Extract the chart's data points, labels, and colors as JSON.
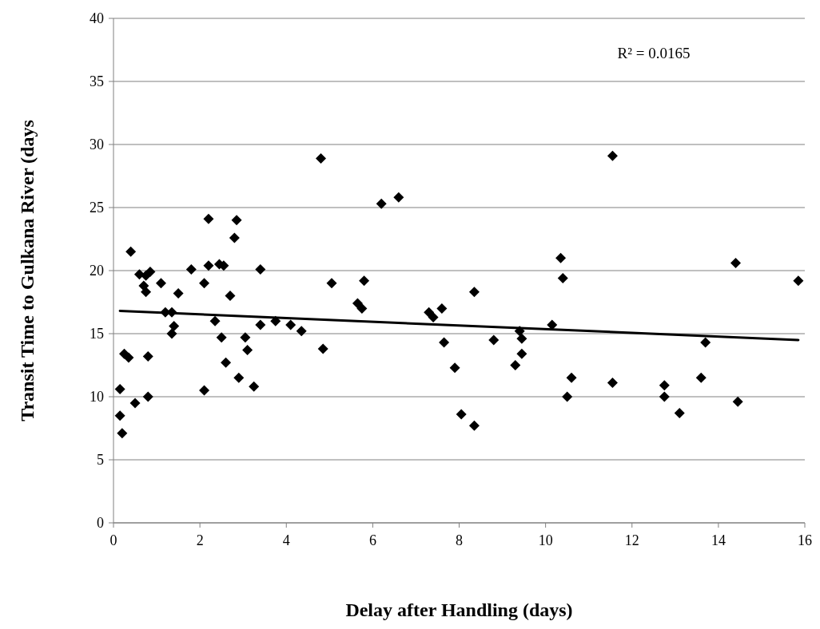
{
  "chart_data": {
    "type": "scatter",
    "xlabel": "Delay after Handling (days)",
    "ylabel": "Transit Time to Gulkana River (days",
    "annotations": [
      "R² = 0.0165"
    ],
    "xlim": [
      0,
      16
    ],
    "xticks": [
      0,
      2,
      4,
      6,
      8,
      10,
      12,
      14,
      16
    ],
    "ylim": [
      0,
      40
    ],
    "yticks": [
      0,
      5,
      10,
      15,
      20,
      25,
      30,
      35,
      40
    ],
    "grid": "y",
    "series": [
      {
        "color": "#000000",
        "marker": "diamond",
        "x": [
          0.15,
          0.15,
          0.2,
          0.25,
          0.35,
          0.4,
          0.5,
          0.6,
          0.7,
          0.75,
          0.75,
          0.85,
          0.8,
          0.8,
          1.1,
          1.2,
          1.35,
          1.4,
          1.35,
          1.5,
          1.8,
          2.1,
          2.1,
          2.2,
          2.2,
          2.35,
          2.45,
          2.55,
          2.5,
          2.6,
          2.7,
          2.8,
          2.85,
          2.9,
          3.05,
          3.1,
          3.25,
          3.4,
          3.4,
          3.75,
          4.1,
          4.35,
          4.8,
          4.85,
          5.05,
          5.65,
          5.75,
          5.8,
          6.2,
          6.6,
          7.3,
          7.4,
          7.6,
          7.65,
          7.9,
          8.05,
          8.35,
          8.35,
          8.8,
          9.3,
          9.4,
          9.45,
          9.45,
          10.15,
          10.35,
          10.4,
          10.5,
          10.6,
          11.55,
          11.55,
          12.75,
          12.75,
          13.1,
          13.6,
          13.7,
          14.4,
          14.45,
          15.85
        ],
        "values": [
          8.5,
          10.6,
          7.1,
          13.4,
          13.1,
          21.5,
          9.5,
          19.7,
          18.8,
          18.3,
          19.6,
          19.9,
          13.2,
          10.0,
          19.0,
          16.7,
          16.7,
          15.6,
          15.0,
          18.2,
          20.1,
          10.5,
          19.0,
          24.1,
          20.4,
          16.0,
          20.5,
          20.4,
          14.7,
          12.7,
          18.0,
          22.6,
          24.0,
          11.5,
          14.7,
          13.7,
          10.8,
          20.1,
          15.7,
          16.0,
          15.7,
          15.2,
          28.9,
          13.8,
          19.0,
          17.4,
          17.0,
          19.2,
          25.3,
          25.8,
          16.7,
          16.3,
          17.0,
          14.3,
          12.3,
          8.6,
          7.7,
          18.3,
          14.5,
          12.5,
          15.2,
          14.6,
          13.4,
          15.7,
          21.0,
          19.4,
          10.0,
          11.5,
          29.1,
          11.1,
          10.9,
          10.0,
          8.7,
          11.5,
          14.3,
          20.6,
          9.6,
          19.2
        ]
      },
      {
        "type": "line",
        "color": "#000000",
        "marker": "none",
        "line_style": "solid",
        "x": [
          0.15,
          15.85
        ],
        "values": [
          16.8,
          14.5
        ]
      }
    ]
  }
}
